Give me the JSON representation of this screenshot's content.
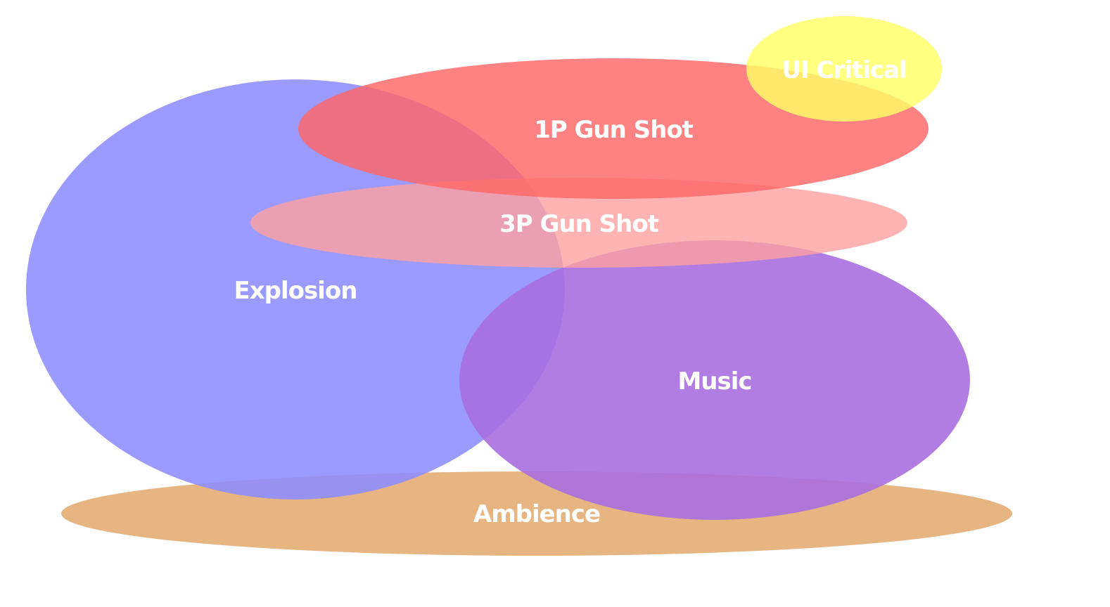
{
  "diagram": {
    "type": "overlapping-ellipses",
    "sets": [
      {
        "id": "ambience",
        "label": "Ambience",
        "color": "#e2a86c"
      },
      {
        "id": "explosion",
        "label": "Explosion",
        "color": "#8c8cff"
      },
      {
        "id": "music",
        "label": "Music",
        "color": "#a96fe0"
      },
      {
        "id": "gun-3p",
        "label": "3P Gun Shot",
        "color": "#ffa0a0"
      },
      {
        "id": "gun-1p",
        "label": "1P Gun Shot",
        "color": "#ff6666"
      },
      {
        "id": "ui-critical",
        "label": "UI Critical",
        "color": "#ffff66"
      }
    ]
  }
}
